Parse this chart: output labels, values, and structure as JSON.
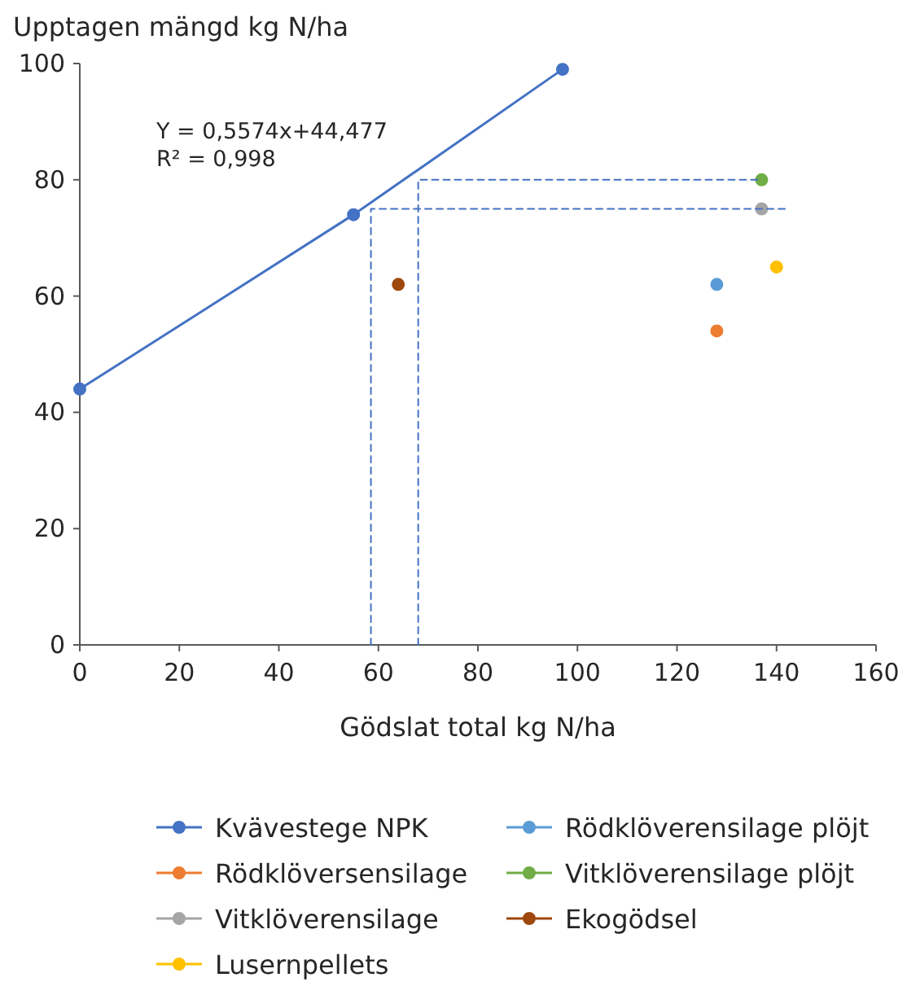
{
  "chart_data": {
    "type": "scatter",
    "ylabel": "Upptagen mängd kg N/ha",
    "xlabel": "Gödslat total kg N/ha",
    "xlim": [
      0,
      160
    ],
    "xticks": [
      0,
      20,
      40,
      60,
      80,
      100,
      120,
      140,
      160
    ],
    "ylim": [
      0,
      100
    ],
    "yticks": [
      0,
      20,
      40,
      60,
      80,
      100
    ],
    "grid": false,
    "legend": "bottom",
    "marker": "circle",
    "annotations": [
      "Y  = 0,5574x+44,477",
      "R² = 0,998"
    ],
    "series": [
      {
        "name": "Kvävestege NPK",
        "type": "line",
        "color": "#4472c4",
        "x": [
          0,
          55,
          97
        ],
        "values": [
          44,
          74,
          99
        ]
      },
      {
        "name": "Rödklöversensilage",
        "color": "#ed7d31",
        "x": [
          128
        ],
        "values": [
          54
        ]
      },
      {
        "name": "Vitklöverensilage",
        "color": "#a5a5a5",
        "x": [
          137
        ],
        "values": [
          75
        ]
      },
      {
        "name": "Lusernpellets",
        "color": "#ffc000",
        "x": [
          140
        ],
        "values": [
          65
        ]
      },
      {
        "name": "Rödklöverensilage plöjt",
        "color": "#5b9bd5",
        "x": [
          128
        ],
        "values": [
          62
        ]
      },
      {
        "name": "Vitklöverensilage plöjt",
        "color": "#70ad47",
        "x": [
          137
        ],
        "values": [
          80
        ]
      },
      {
        "name": "Ekogödsel",
        "color": "#9e480e",
        "x": [
          64
        ],
        "values": [
          62
        ]
      },
      {
        "type": "line",
        "line_style": "dashed",
        "marker": "none",
        "color": "#4472c4",
        "x": [
          58.5,
          58.5,
          142
        ],
        "values": [
          0,
          75,
          75
        ]
      },
      {
        "type": "line",
        "line_style": "dashed",
        "marker": "none",
        "color": "#4472c4",
        "x": [
          68,
          68,
          137
        ],
        "values": [
          0,
          80,
          80
        ]
      }
    ]
  }
}
